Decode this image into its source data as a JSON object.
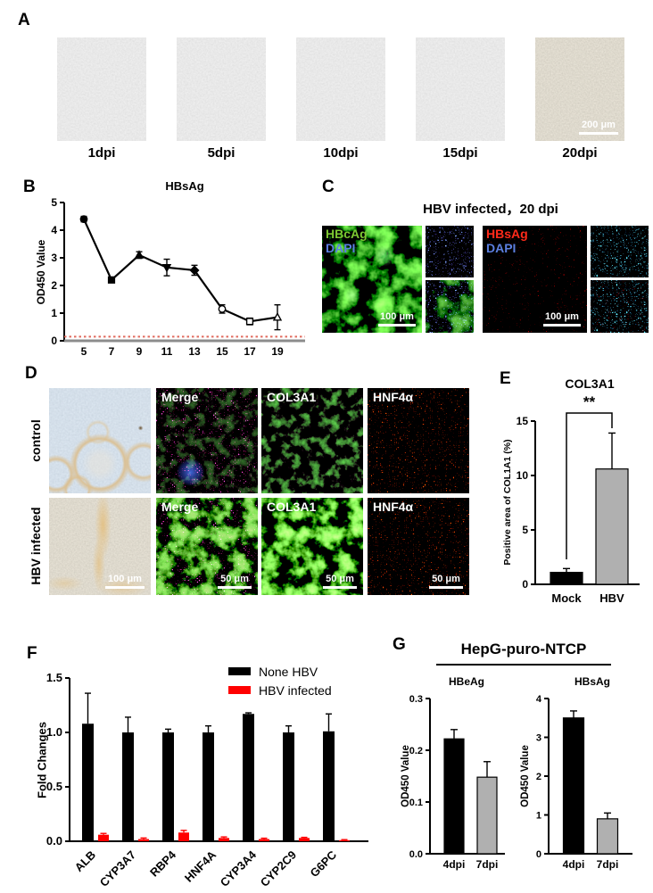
{
  "figure": {
    "panel_a": {
      "label": "A",
      "images": [
        {
          "caption": "1dpi"
        },
        {
          "caption": "5dpi"
        },
        {
          "caption": "10dpi"
        },
        {
          "caption": "15dpi"
        },
        {
          "caption": "20dpi"
        }
      ],
      "scale_bar": "200 μm"
    },
    "panel_b": {
      "label": "B"
    },
    "panel_c": {
      "label": "C",
      "title": "HBV infected，20 dpi",
      "left_marker": "HBcAg",
      "left_stain": "DAPI",
      "left_scale_bar": "100 μm",
      "right_marker": "HBsAg",
      "right_stain": "DAPI",
      "right_scale_bar": "100 μm"
    },
    "panel_d": {
      "label": "D",
      "row_labels": [
        "control",
        "HBV infected"
      ],
      "image_labels": [
        "Merge",
        "COL3A1",
        "HNF4α"
      ],
      "brightfield_scale_bar": "100 μm",
      "fluorescence_scale_bar": "50 μm"
    },
    "panel_e": {
      "label": "E"
    },
    "panel_f": {
      "label": "F"
    },
    "panel_g": {
      "label": "G",
      "title": "HepG-puro-NTCP",
      "left_subtitle": "HBeAg",
      "right_subtitle": "HBsAg"
    }
  },
  "colors": {
    "black_bar": "#000000",
    "gray_bar": "#b0b0b0",
    "red_bar": "#ff0000",
    "baseline_red": "#e06a5e",
    "hbcag_green": "#7dc832",
    "dapi_blue": "#5c7fe0",
    "hbsag_red": "#ff2a1a"
  },
  "chart_data": [
    {
      "id": "hbsag_timecourse",
      "type": "line",
      "title": "HBsAg",
      "xlabel": "",
      "ylabel": "OD450 Value",
      "x": [
        5,
        7,
        9,
        11,
        13,
        15,
        17,
        19
      ],
      "values": [
        4.4,
        2.2,
        3.1,
        2.65,
        2.55,
        1.15,
        0.7,
        0.85
      ],
      "errors": [
        0.1,
        0.05,
        0.12,
        0.3,
        0.18,
        0.15,
        0.12,
        0.45
      ],
      "markers": [
        "circle-filled",
        "square-filled",
        "triangle-filled",
        "triangle-down-filled",
        "diamond-filled",
        "circle-open",
        "square-open",
        "triangle-open"
      ],
      "ylim": [
        0,
        5
      ],
      "yticks": [
        0,
        1,
        2,
        3,
        4,
        5
      ],
      "ytick_labels": [
        "0",
        "1",
        "2",
        "3",
        "4",
        "5"
      ],
      "baseline": 0.15,
      "baseline_style": "dashed-red"
    },
    {
      "id": "col3a1_quant",
      "type": "bar",
      "title": "COL3A1",
      "ylabel": "Positive area of COL1A1 (%)",
      "categories": [
        "Mock",
        "HBV"
      ],
      "values": [
        1.1,
        10.6
      ],
      "errors": [
        0.35,
        3.3
      ],
      "bar_colors": [
        "#000000",
        "#b0b0b0"
      ],
      "ylim": [
        0,
        15
      ],
      "yticks": [
        0,
        5,
        10,
        15
      ],
      "ytick_labels": [
        "0",
        "5",
        "10",
        "15"
      ],
      "significance": "**"
    },
    {
      "id": "gene_expression",
      "type": "bar",
      "ylabel": "Fold Changes",
      "categories": [
        "ALB",
        "CYP3A7",
        "RBP4",
        "HNF4A",
        "CYP3A4",
        "CYP2C9",
        "G6PC"
      ],
      "series": [
        {
          "name": "None HBV",
          "color": "#000000",
          "values": [
            1.08,
            1.0,
            1.0,
            1.0,
            1.17,
            1.0,
            1.01
          ],
          "errors": [
            0.28,
            0.14,
            0.03,
            0.06,
            0.01,
            0.06,
            0.16
          ]
        },
        {
          "name": "HBV infected",
          "color": "#ff0000",
          "values": [
            0.06,
            0.02,
            0.08,
            0.03,
            0.02,
            0.03,
            0.01
          ],
          "errors": [
            0.012,
            0.01,
            0.02,
            0.01,
            0.008,
            0.006,
            0.005
          ]
        }
      ],
      "ylim": [
        0,
        1.5
      ],
      "yticks": [
        0,
        0.5,
        1,
        1.5
      ],
      "ytick_labels": [
        "0.0",
        "0.5",
        "1.0",
        "1.5"
      ],
      "legend_position": "top-right"
    },
    {
      "id": "hepg_hbeag",
      "type": "bar",
      "title": "HBeAg",
      "ylabel": "OD450 Value",
      "categories": [
        "4dpi",
        "7dpi"
      ],
      "values": [
        0.222,
        0.148
      ],
      "errors": [
        0.018,
        0.03
      ],
      "bar_colors": [
        "#000000",
        "#b0b0b0"
      ],
      "ylim": [
        0,
        0.3
      ],
      "yticks": [
        0,
        0.1,
        0.2,
        0.3
      ],
      "ytick_labels": [
        "0.0",
        "0.1",
        "0.2",
        "0.3"
      ]
    },
    {
      "id": "hepg_hbsag",
      "type": "bar",
      "title": "HBsAg",
      "ylabel": "OD450 Value",
      "categories": [
        "4dpi",
        "7dpi"
      ],
      "values": [
        3.5,
        0.9
      ],
      "errors": [
        0.18,
        0.15
      ],
      "bar_colors": [
        "#000000",
        "#b0b0b0"
      ],
      "ylim": [
        0,
        4
      ],
      "yticks": [
        0,
        1,
        2,
        3,
        4
      ],
      "ytick_labels": [
        "0",
        "1",
        "2",
        "3",
        "4"
      ]
    }
  ]
}
